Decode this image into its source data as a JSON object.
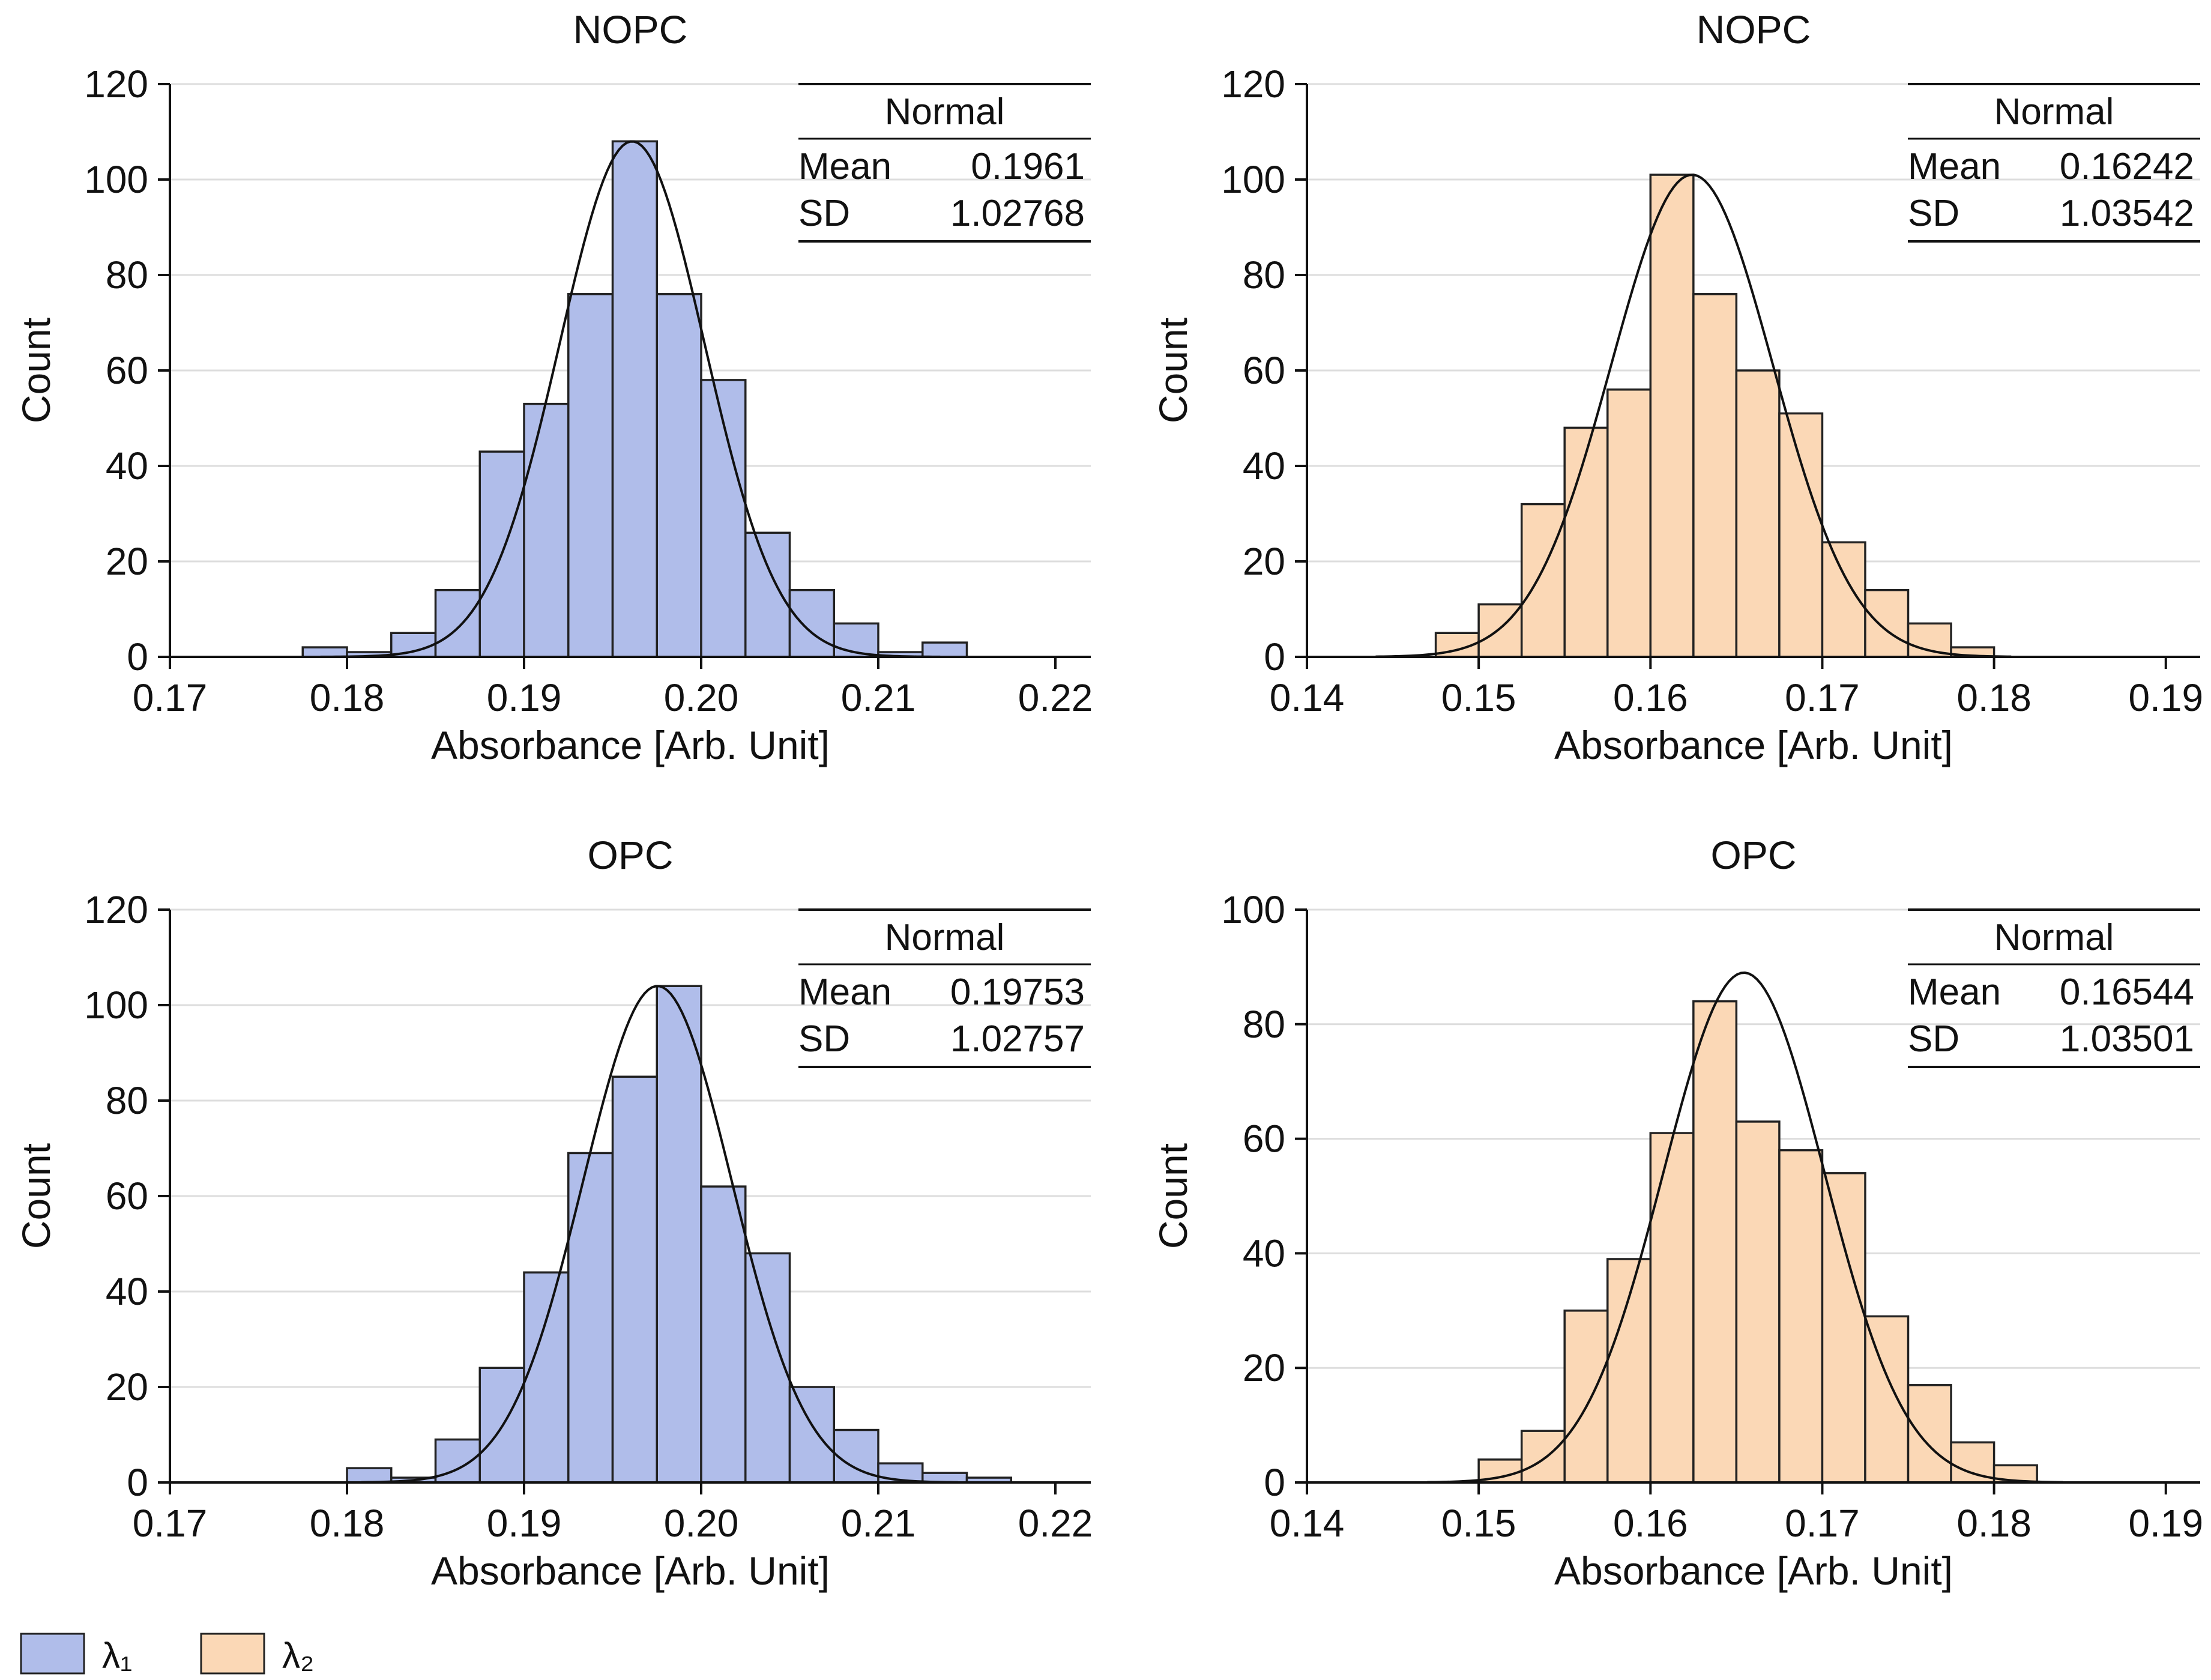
{
  "figure": {
    "legend": {
      "items": [
        {
          "label": "λ₁",
          "color": "#b0bdea"
        },
        {
          "label": "λ₂",
          "color": "#fbd8b6"
        }
      ]
    }
  },
  "chart_data": [
    {
      "type": "bar",
      "subtype": "histogram",
      "title": "NOPC",
      "xlabel": "Absorbance [Arb. Unit]",
      "ylabel": "Count",
      "series_name": "λ₁",
      "color": "#b0bdea",
      "xlim": [
        0.17,
        0.222
      ],
      "ylim": [
        0,
        120
      ],
      "xticks": [
        0.17,
        0.18,
        0.19,
        0.2,
        0.21,
        0.22
      ],
      "xtick_labels": [
        "0.17",
        "0.18",
        "0.19",
        "0.20",
        "0.21",
        "0.22"
      ],
      "yticks": [
        0,
        20,
        40,
        60,
        80,
        100,
        120
      ],
      "grid": "horizontal",
      "bin_edges": [
        0.1775,
        0.18,
        0.1825,
        0.185,
        0.1875,
        0.19,
        0.1925,
        0.195,
        0.1975,
        0.2,
        0.2025,
        0.205,
        0.2075,
        0.21,
        0.2125,
        0.215
      ],
      "counts": [
        2,
        1,
        5,
        14,
        43,
        53,
        76,
        108,
        76,
        58,
        26,
        14,
        7,
        1,
        3
      ],
      "fit": {
        "type": "normal",
        "peak": 108,
        "center": 0.1961,
        "sigma": 0.0041,
        "x_range": [
          0.1785,
          0.2135
        ]
      },
      "stats_table": {
        "header": "Normal",
        "rows": [
          {
            "label": "Mean",
            "value": "0.1961"
          },
          {
            "label": "SD",
            "value": "1.02768"
          }
        ]
      }
    },
    {
      "type": "bar",
      "subtype": "histogram",
      "title": "NOPC",
      "xlabel": "Absorbance [Arb. Unit]",
      "ylabel": "Count",
      "series_name": "λ₂",
      "color": "#fbd8b6",
      "xlim": [
        0.14,
        0.192
      ],
      "ylim": [
        0,
        120
      ],
      "xticks": [
        0.14,
        0.15,
        0.16,
        0.17,
        0.18,
        0.19
      ],
      "xtick_labels": [
        "0.14",
        "0.15",
        "0.16",
        "0.17",
        "0.18",
        "0.19"
      ],
      "yticks": [
        0,
        20,
        40,
        60,
        80,
        100,
        120
      ],
      "grid": "horizontal",
      "bin_edges": [
        0.1475,
        0.15,
        0.1525,
        0.155,
        0.1575,
        0.16,
        0.1625,
        0.165,
        0.1675,
        0.17,
        0.1725,
        0.175,
        0.1775,
        0.18
      ],
      "counts": [
        5,
        11,
        32,
        48,
        56,
        101,
        76,
        60,
        51,
        24,
        14,
        7,
        2
      ],
      "fit": {
        "type": "normal",
        "peak": 101,
        "center": 0.16242,
        "sigma": 0.0047,
        "x_range": [
          0.144,
          0.181
        ]
      },
      "stats_table": {
        "header": "Normal",
        "rows": [
          {
            "label": "Mean",
            "value": "0.16242"
          },
          {
            "label": "SD",
            "value": "1.03542"
          }
        ]
      }
    },
    {
      "type": "bar",
      "subtype": "histogram",
      "title": "OPC",
      "xlabel": "Absorbance [Arb. Unit]",
      "ylabel": "Count",
      "series_name": "λ₁",
      "color": "#b0bdea",
      "xlim": [
        0.17,
        0.222
      ],
      "ylim": [
        0,
        120
      ],
      "xticks": [
        0.17,
        0.18,
        0.19,
        0.2,
        0.21,
        0.22
      ],
      "xtick_labels": [
        "0.17",
        "0.18",
        "0.19",
        "0.20",
        "0.21",
        "0.22"
      ],
      "yticks": [
        0,
        20,
        40,
        60,
        80,
        100,
        120
      ],
      "grid": "horizontal",
      "bin_edges": [
        0.18,
        0.1825,
        0.185,
        0.1875,
        0.19,
        0.1925,
        0.195,
        0.1975,
        0.2,
        0.2025,
        0.205,
        0.2075,
        0.21,
        0.2125,
        0.215,
        0.2175
      ],
      "counts": [
        3,
        1,
        9,
        24,
        44,
        69,
        85,
        104,
        62,
        48,
        20,
        11,
        4,
        2,
        1
      ],
      "fit": {
        "type": "normal",
        "peak": 104,
        "center": 0.19753,
        "sigma": 0.0042,
        "x_range": [
          0.1808,
          0.2145
        ]
      },
      "stats_table": {
        "header": "Normal",
        "rows": [
          {
            "label": "Mean",
            "value": "0.19753"
          },
          {
            "label": "SD",
            "value": "1.02757"
          }
        ]
      }
    },
    {
      "type": "bar",
      "subtype": "histogram",
      "title": "OPC",
      "xlabel": "Absorbance [Arb. Unit]",
      "ylabel": "Count",
      "series_name": "λ₂",
      "color": "#fbd8b6",
      "xlim": [
        0.14,
        0.192
      ],
      "ylim": [
        0,
        100
      ],
      "xticks": [
        0.14,
        0.15,
        0.16,
        0.17,
        0.18,
        0.19
      ],
      "xtick_labels": [
        "0.14",
        "0.15",
        "0.16",
        "0.17",
        "0.18",
        "0.19"
      ],
      "yticks": [
        0,
        20,
        40,
        60,
        80,
        100
      ],
      "grid": "horizontal",
      "bin_edges": [
        0.15,
        0.1525,
        0.155,
        0.1575,
        0.16,
        0.1625,
        0.165,
        0.1675,
        0.17,
        0.1725,
        0.175,
        0.1775,
        0.18,
        0.1825
      ],
      "counts": [
        4,
        9,
        30,
        39,
        61,
        84,
        63,
        58,
        54,
        29,
        17,
        7,
        3
      ],
      "fit": {
        "type": "normal",
        "peak": 89,
        "center": 0.16544,
        "sigma": 0.0047,
        "x_range": [
          0.147,
          0.184
        ]
      },
      "stats_table": {
        "header": "Normal",
        "rows": [
          {
            "label": "Mean",
            "value": "0.16544"
          },
          {
            "label": "SD",
            "value": "1.03501"
          }
        ]
      }
    }
  ]
}
